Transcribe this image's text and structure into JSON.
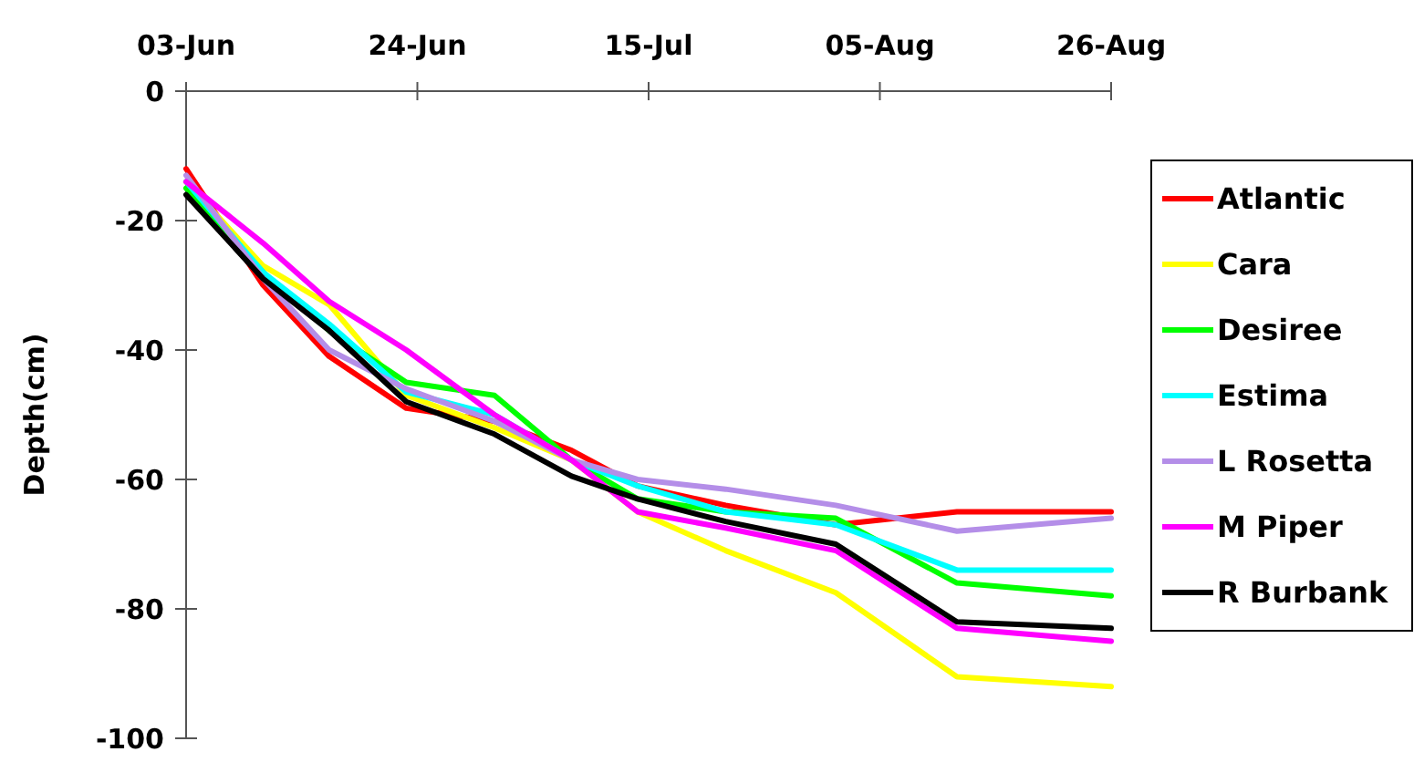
{
  "chart_data": {
    "type": "line",
    "ylabel": "Depth(cm)",
    "x": [
      "--06-03",
      "--06-10",
      "--06-16",
      "--06-23",
      "--07-01",
      "--07-08",
      "--07-14",
      "--07-22",
      "--08-01",
      "--08-12",
      "--08-26"
    ],
    "xlim": [
      "--06-03",
      "--08-26"
    ],
    "xticks": [
      {
        "value": "--06-03",
        "label": "03-Jun"
      },
      {
        "value": "--06-24",
        "label": "24-Jun"
      },
      {
        "value": "--07-15",
        "label": "15-Jul"
      },
      {
        "value": "--08-05",
        "label": "05-Aug"
      },
      {
        "value": "--08-26",
        "label": "26-Aug"
      }
    ],
    "ylim": [
      -100,
      0
    ],
    "yticks": [
      -100,
      -80,
      -60,
      -40,
      -20,
      0
    ],
    "grid": false,
    "legend": "right",
    "marker": "none",
    "line_style": "solid",
    "series": [
      {
        "name": "Atlantic",
        "color": "#ff0000",
        "values": [
          -12,
          -30,
          -41,
          -49,
          -51,
          -55.5,
          -61,
          -64,
          -67,
          -65,
          -65
        ]
      },
      {
        "name": "Cara",
        "color": "#ffff00",
        "values": [
          -14,
          -27,
          -33,
          -47,
          -52,
          -57,
          -65,
          -71,
          -77.5,
          -90.5,
          -92
        ]
      },
      {
        "name": "Desiree",
        "color": "#00ff00",
        "values": [
          -15,
          -28,
          -37,
          -45,
          -47,
          -57,
          -63,
          -65,
          -66,
          -76,
          -78
        ]
      },
      {
        "name": "Estima",
        "color": "#00ffff",
        "values": [
          -14,
          -28,
          -36,
          -46.5,
          -50,
          -57,
          -61,
          -65,
          -67,
          -74,
          -74
        ]
      },
      {
        "name": "L Rosetta",
        "color": "#b48ee8",
        "values": [
          -13,
          -29,
          -40,
          -46,
          -51,
          -57,
          -60,
          -61.5,
          -64,
          -68,
          -66
        ]
      },
      {
        "name": "M Piper",
        "color": "#ff00ff",
        "values": [
          -14,
          -23.5,
          -32.5,
          -40,
          -50,
          -57,
          -65,
          -67.5,
          -71,
          -83,
          -85
        ]
      },
      {
        "name": "R Burbank",
        "color": "#000000",
        "values": [
          -16,
          -29,
          -37,
          -48,
          -53,
          -59.5,
          -63,
          -66.5,
          -70,
          -82,
          -83
        ]
      }
    ]
  }
}
